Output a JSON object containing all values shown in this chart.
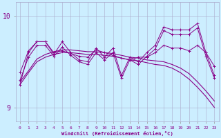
{
  "xlabel": "Windchill (Refroidissement éolien,°C)",
  "bg_color": "#cceeff",
  "line_color": "#880088",
  "ylim": [
    8.85,
    10.15
  ],
  "xlim": [
    -0.5,
    23.5
  ],
  "yticks": [
    9,
    10
  ],
  "xticks": [
    0,
    1,
    2,
    3,
    4,
    5,
    6,
    7,
    8,
    9,
    10,
    11,
    12,
    13,
    14,
    15,
    16,
    17,
    18,
    19,
    20,
    21,
    22,
    23
  ],
  "line1": [
    9.38,
    9.62,
    9.72,
    9.72,
    9.6,
    9.62,
    9.59,
    9.56,
    9.55,
    9.63,
    9.6,
    9.57,
    9.54,
    9.52,
    9.55,
    9.55,
    9.6,
    9.68,
    9.65,
    9.65,
    9.62,
    9.68,
    9.6,
    9.45
  ],
  "line2": [
    9.25,
    9.6,
    9.72,
    9.72,
    9.58,
    9.72,
    9.6,
    9.52,
    9.5,
    9.65,
    9.55,
    9.65,
    9.35,
    9.55,
    9.5,
    9.6,
    9.68,
    9.88,
    9.85,
    9.85,
    9.85,
    9.92,
    9.6,
    9.35
  ],
  "line3": [
    9.3,
    9.55,
    9.68,
    9.68,
    9.56,
    9.66,
    9.57,
    9.5,
    9.47,
    9.6,
    9.52,
    9.6,
    9.32,
    9.52,
    9.47,
    9.56,
    9.64,
    9.84,
    9.8,
    9.8,
    9.8,
    9.87,
    9.56,
    9.32
  ],
  "line4_smooth": [
    9.28,
    9.4,
    9.53,
    9.58,
    9.61,
    9.63,
    9.63,
    9.62,
    9.61,
    9.61,
    9.6,
    9.59,
    9.57,
    9.55,
    9.54,
    9.52,
    9.51,
    9.5,
    9.47,
    9.43,
    9.37,
    9.28,
    9.18,
    9.07
  ],
  "line5_smooth": [
    9.25,
    9.38,
    9.5,
    9.55,
    9.58,
    9.6,
    9.6,
    9.59,
    9.58,
    9.58,
    9.57,
    9.56,
    9.54,
    9.52,
    9.51,
    9.49,
    9.47,
    9.46,
    9.43,
    9.38,
    9.31,
    9.22,
    9.12,
    9.0
  ]
}
